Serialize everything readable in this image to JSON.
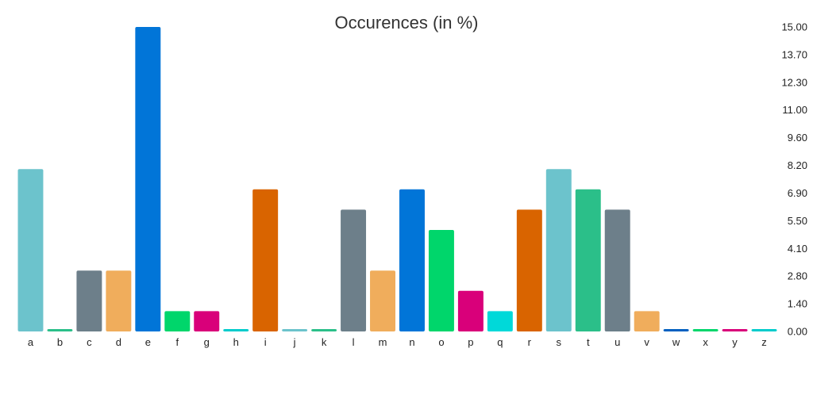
{
  "chart_data": {
    "type": "bar",
    "title": "Occurences (in %)",
    "xlabel": "",
    "ylabel": "",
    "categories": [
      "a",
      "b",
      "c",
      "d",
      "e",
      "f",
      "g",
      "h",
      "i",
      "j",
      "k",
      "l",
      "m",
      "n",
      "o",
      "p",
      "q",
      "r",
      "s",
      "t",
      "u",
      "v",
      "w",
      "x",
      "y",
      "z"
    ],
    "values": [
      8,
      0.1,
      3,
      3,
      15,
      1,
      1,
      0.1,
      7,
      0.1,
      0.1,
      6,
      3,
      7,
      5,
      2,
      1,
      6,
      8,
      7,
      6,
      1,
      0.1,
      0.1,
      0.1,
      0.1
    ],
    "colors": [
      "#6cc3cc",
      "#2bbf89",
      "#6d7f8a",
      "#f0ad5c",
      "#0175d8",
      "#00d66b",
      "#d9007a",
      "#00cccc",
      "#d96400",
      "#6cc3cc",
      "#2bbf89",
      "#6d7f8a",
      "#f0ad5c",
      "#0175d8",
      "#00d66b",
      "#d9007a",
      "#00d9d9",
      "#d96400",
      "#6cc3cc",
      "#2bbf89",
      "#6d7f8a",
      "#f0ad5c",
      "#0160c0",
      "#00d66b",
      "#d9007a",
      "#00cccc"
    ],
    "y_ticks": [
      "0.00",
      "1.40",
      "2.80",
      "4.10",
      "5.50",
      "6.90",
      "8.20",
      "9.60",
      "11.00",
      "12.30",
      "13.70",
      "15.00"
    ],
    "ylim": [
      0,
      15
    ],
    "y_axis_position": "right",
    "grid": false,
    "legend": "none"
  }
}
